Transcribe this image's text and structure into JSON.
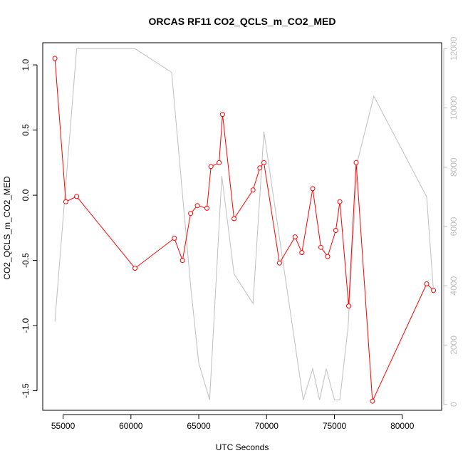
{
  "chart_data": {
    "type": "line",
    "title": "ORCAS RF11 CO2_QCLS_m_CO2_MED",
    "xlabel": "UTC Seconds",
    "ylabel": "CO2_QCLS_m_CO2_MED",
    "y2label": "",
    "xlim": [
      53500,
      82900
    ],
    "ylim": [
      -1.65,
      1.17
    ],
    "y2lim": [
      -200,
      12200
    ],
    "x_ticks": [
      55000,
      60000,
      65000,
      70000,
      75000,
      80000
    ],
    "y_ticks": [
      -1.5,
      -1.0,
      -0.5,
      0.0,
      0.5,
      1.0
    ],
    "y_tick_labels": [
      "-1.5",
      "-1.0",
      "-0.5",
      "0.0",
      "0.5",
      "1.0"
    ],
    "y2_ticks": [
      0,
      2000,
      4000,
      6000,
      8000,
      10000,
      12000
    ],
    "colors": {
      "primary": "#ff0000",
      "secondary": "#bebebe",
      "axis": "#000000"
    },
    "series": [
      {
        "axis": "left",
        "style": "line-with-open-circles",
        "x": [
          54400,
          55200,
          56000,
          60300,
          63200,
          63800,
          64400,
          64900,
          65600,
          65900,
          66500,
          66750,
          67600,
          69000,
          69500,
          69800,
          70950,
          72100,
          72600,
          73400,
          74000,
          74500,
          75100,
          75400,
          76050,
          76600,
          77800,
          81800,
          82300
        ],
        "y": [
          1.05,
          -0.05,
          -0.01,
          -0.56,
          -0.33,
          -0.5,
          -0.14,
          -0.08,
          -0.1,
          0.22,
          0.25,
          0.62,
          -0.18,
          0.04,
          0.21,
          0.25,
          -0.52,
          -0.32,
          -0.44,
          0.05,
          -0.4,
          -0.47,
          -0.27,
          -0.05,
          -0.85,
          0.25,
          -1.58,
          -0.68,
          -0.73
        ]
      },
      {
        "axis": "right",
        "style": "line",
        "x": [
          54400,
          56000,
          60300,
          63000,
          64400,
          65000,
          65800,
          66700,
          67600,
          69000,
          69800,
          72700,
          73400,
          73900,
          74400,
          75000,
          75400,
          76000,
          76700,
          77900,
          81800,
          82300
        ],
        "y": [
          2800,
          12000,
          12000,
          11200,
          4000,
          1400,
          150,
          7700,
          4400,
          3400,
          9200,
          150,
          1200,
          150,
          1200,
          150,
          150,
          2600,
          8200,
          10400,
          7000,
          3800
        ]
      }
    ]
  }
}
